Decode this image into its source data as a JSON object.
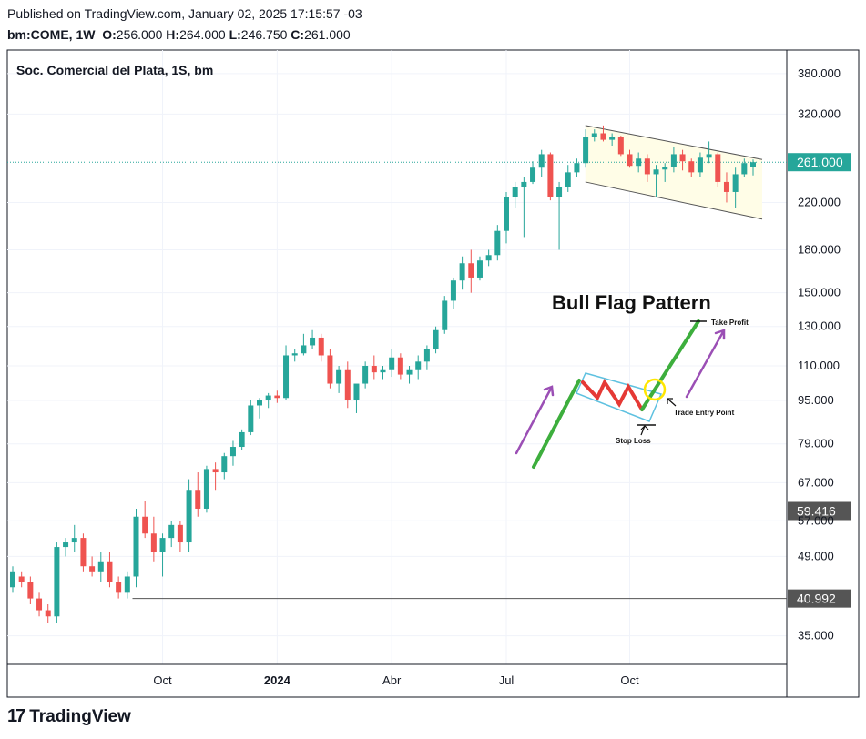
{
  "header": {
    "published": "Published on TradingView.com, January 02, 2025 17:15:57 -03",
    "symbol": "bm:COME, 1W",
    "o_label": "O:",
    "o_value": "256.000",
    "h_label": "H:",
    "h_value": "264.000",
    "l_label": "L:",
    "l_value": "246.750",
    "c_label": "C:",
    "c_value": "261.000"
  },
  "footer": {
    "brand": "TradingView",
    "logo_glyph": "17"
  },
  "colors": {
    "up": "#26a69a",
    "down": "#ef5350",
    "line_green": "#3dae3d",
    "arrow": "#9b4fb5",
    "flag_fill": "#fffde7",
    "highlight": "#ffe600"
  },
  "chart_data": {
    "type": "candlestick",
    "title": "Soc. Comercial del Plata, 1S, bm",
    "y_scale": "log",
    "ylim": [
      31,
      420
    ],
    "price_ticks": [
      "380.000",
      "320.000",
      "220.000",
      "180.000",
      "150.000",
      "130.000",
      "110.000",
      "95.000",
      "79.000",
      "67.000",
      "57.000",
      "49.000",
      "35.000"
    ],
    "x_labels": [
      {
        "label": "Oct",
        "week": 17
      },
      {
        "label": "2024",
        "week": 30
      },
      {
        "label": "Abr",
        "week": 43
      },
      {
        "label": "Jul",
        "week": 56
      },
      {
        "label": "Oct",
        "week": 70
      }
    ],
    "current_price": {
      "value": 261.0,
      "label": "261.000"
    },
    "horizontal_levels": [
      {
        "value": 59.416,
        "label": "59.416",
        "from_week": 15
      },
      {
        "value": 40.992,
        "label": "40.992",
        "from_week": 14
      }
    ],
    "candles": [
      [
        43,
        47,
        42,
        46
      ],
      [
        45,
        46,
        43,
        44
      ],
      [
        44,
        45,
        40,
        41
      ],
      [
        41,
        42,
        38,
        39
      ],
      [
        39,
        40,
        37,
        38
      ],
      [
        38,
        52,
        37,
        51
      ],
      [
        51,
        53,
        49,
        52
      ],
      [
        52,
        56,
        50,
        53
      ],
      [
        53,
        54,
        46,
        47
      ],
      [
        47,
        49,
        45,
        46
      ],
      [
        46,
        50,
        44,
        48
      ],
      [
        48,
        50,
        43,
        44
      ],
      [
        44,
        45,
        41,
        42
      ],
      [
        42,
        46,
        41,
        45
      ],
      [
        45,
        60,
        43,
        58
      ],
      [
        58,
        62,
        53,
        54
      ],
      [
        54,
        58,
        48,
        50
      ],
      [
        50,
        54,
        45,
        53
      ],
      [
        53,
        57,
        51,
        56
      ],
      [
        56,
        57,
        50,
        52
      ],
      [
        52,
        68,
        50,
        65
      ],
      [
        65,
        70,
        58,
        60
      ],
      [
        60,
        72,
        59,
        71
      ],
      [
        71,
        73,
        65,
        70
      ],
      [
        70,
        76,
        68,
        75
      ],
      [
        75,
        80,
        72,
        78
      ],
      [
        78,
        84,
        77,
        83
      ],
      [
        83,
        95,
        82,
        93
      ],
      [
        93,
        96,
        88,
        95
      ],
      [
        95,
        98,
        92,
        97
      ],
      [
        97,
        99,
        94,
        96
      ],
      [
        96,
        120,
        95,
        115
      ],
      [
        115,
        118,
        112,
        116
      ],
      [
        116,
        126,
        115,
        120
      ],
      [
        120,
        128,
        118,
        124
      ],
      [
        124,
        126,
        112,
        115
      ],
      [
        115,
        118,
        100,
        102
      ],
      [
        102,
        110,
        98,
        108
      ],
      [
        108,
        112,
        92,
        95
      ],
      [
        95,
        100,
        90,
        102
      ],
      [
        102,
        112,
        100,
        110
      ],
      [
        110,
        115,
        104,
        107
      ],
      [
        107,
        110,
        104,
        108
      ],
      [
        108,
        118,
        105,
        114
      ],
      [
        114,
        116,
        104,
        106
      ],
      [
        106,
        110,
        102,
        108
      ],
      [
        108,
        115,
        104,
        112
      ],
      [
        112,
        120,
        108,
        118
      ],
      [
        118,
        130,
        116,
        128
      ],
      [
        128,
        148,
        126,
        145
      ],
      [
        145,
        160,
        140,
        158
      ],
      [
        158,
        175,
        152,
        170
      ],
      [
        170,
        180,
        150,
        160
      ],
      [
        160,
        175,
        158,
        172
      ],
      [
        172,
        180,
        168,
        176
      ],
      [
        176,
        200,
        172,
        195
      ],
      [
        195,
        230,
        185,
        225
      ],
      [
        225,
        240,
        215,
        235
      ],
      [
        235,
        245,
        190,
        240
      ],
      [
        240,
        262,
        238,
        255
      ],
      [
        255,
        275,
        245,
        270
      ],
      [
        270,
        272,
        222,
        225
      ],
      [
        225,
        240,
        180,
        235
      ],
      [
        235,
        258,
        230,
        250
      ],
      [
        250,
        265,
        245,
        260
      ],
      [
        260,
        300,
        255,
        290
      ],
      [
        290,
        300,
        285,
        295
      ],
      [
        295,
        305,
        285,
        287
      ],
      [
        287,
        295,
        280,
        290
      ],
      [
        290,
        292,
        268,
        270
      ],
      [
        270,
        275,
        255,
        257
      ],
      [
        257,
        272,
        250,
        265
      ],
      [
        265,
        270,
        240,
        248
      ],
      [
        248,
        258,
        225,
        253
      ],
      [
        253,
        260,
        240,
        256
      ],
      [
        256,
        278,
        250,
        270
      ],
      [
        270,
        275,
        252,
        262
      ],
      [
        262,
        265,
        245,
        250
      ],
      [
        250,
        272,
        245,
        266
      ],
      [
        266,
        285,
        260,
        270
      ],
      [
        270,
        272,
        235,
        240
      ],
      [
        240,
        250,
        220,
        230
      ],
      [
        230,
        255,
        215,
        248
      ],
      [
        248,
        265,
        245,
        260
      ],
      [
        256,
        264,
        246.75,
        261
      ]
    ],
    "annotation": {
      "title": "Bull Flag Pattern",
      "take_profit": "Take Profit",
      "trade_entry": "Trade Entry Point",
      "stop_loss": "Stop Loss"
    }
  }
}
